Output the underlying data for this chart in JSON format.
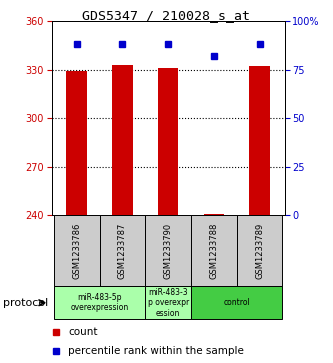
{
  "title": "GDS5347 / 210028_s_at",
  "samples": [
    "GSM1233786",
    "GSM1233787",
    "GSM1233790",
    "GSM1233788",
    "GSM1233789"
  ],
  "bar_values": [
    329,
    333,
    331,
    241,
    332
  ],
  "bar_base": 240,
  "percentile_values": [
    88,
    88,
    88,
    82,
    88
  ],
  "ylim_left": [
    240,
    360
  ],
  "ylim_right": [
    0,
    100
  ],
  "yticks_left": [
    240,
    270,
    300,
    330,
    360
  ],
  "yticks_right": [
    0,
    25,
    50,
    75,
    100
  ],
  "yticklabels_right": [
    "0",
    "25",
    "50",
    "75",
    "100%"
  ],
  "bar_color": "#cc0000",
  "dot_color": "#0000cc",
  "bar_width": 0.45,
  "protocol_groups": [
    {
      "start": 0,
      "end": 1,
      "label": "miR-483-5p\noverexpression",
      "color": "#aaffaa"
    },
    {
      "start": 2,
      "end": 2,
      "label": "miR-483-3\np overexpr\nession",
      "color": "#aaffaa"
    },
    {
      "start": 3,
      "end": 4,
      "label": "control",
      "color": "#44cc44"
    }
  ],
  "legend_count_label": "count",
  "legend_percentile_label": "percentile rank within the sample",
  "protocol_label": "protocol",
  "background_color": "#ffffff",
  "plot_bg_color": "#ffffff",
  "sample_box_color": "#cccccc",
  "tick_color_left": "#cc0000",
  "tick_color_right": "#0000cc",
  "gridlines": [
    270,
    300,
    330
  ]
}
